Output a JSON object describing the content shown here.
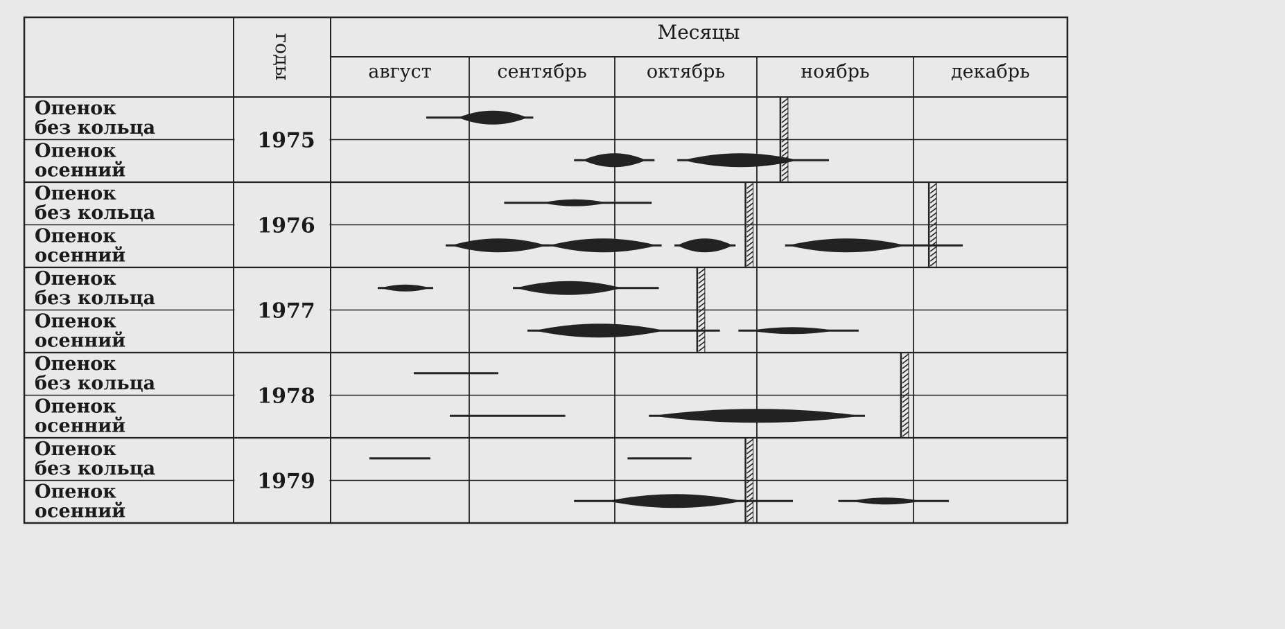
{
  "chart_data": {
    "type": "gantt",
    "header": "Месяцы",
    "years_label": "годы",
    "months": [
      "август",
      "сентябрь",
      "октябрь",
      "ноябрь",
      "декабрь"
    ],
    "x_units": "month (8 = beginning of August, 13 = end of December)",
    "xlim": [
      8,
      13
    ],
    "colors": {
      "ink": "#222222",
      "background": "#e9e9e9"
    },
    "years": [
      {
        "year": "1975",
        "frost": [
          11.15
        ],
        "rows": [
          {
            "label": [
              "Опенок",
              "без кольца"
            ],
            "segments": [
              {
                "from": 8.69,
                "to": 9.44,
                "peak_from": 8.92,
                "peak_to": 9.4
              }
            ]
          },
          {
            "label": [
              "Опенок",
              "осенний"
            ],
            "segments": [
              {
                "from": 9.72,
                "to": 10.28,
                "peak_from": 9.78,
                "peak_to": 10.22
              },
              {
                "from": 10.44,
                "to": 11.46,
                "peak_from": 10.48,
                "peak_to": 11.26
              }
            ]
          }
        ]
      },
      {
        "year": "1976",
        "frost": [
          10.92,
          12.1
        ],
        "rows": [
          {
            "label": [
              "Опенок",
              "без кольца"
            ],
            "segments": [
              {
                "from": 9.24,
                "to": 10.26,
                "peak_from": 9.5,
                "peak_to": 9.95,
                "thin": true
              }
            ]
          },
          {
            "label": [
              "Опенок",
              "осенний"
            ],
            "segments": [
              {
                "from": 8.83,
                "to": 9.55,
                "peak_from": 8.87,
                "peak_to": 9.53
              },
              {
                "from": 9.5,
                "to": 10.33,
                "peak_from": 9.55,
                "peak_to": 10.3
              },
              {
                "from": 10.42,
                "to": 10.85,
                "peak_from": 10.44,
                "peak_to": 10.83
              },
              {
                "from": 11.18,
                "to": 12.32,
                "peak_from": 11.2,
                "peak_to": 11.95
              }
            ]
          }
        ]
      },
      {
        "year": "1977",
        "frost": [
          10.58
        ],
        "rows": [
          {
            "label": [
              "Опенок",
              "без кольца"
            ],
            "segments": [
              {
                "from": 8.34,
                "to": 8.74,
                "peak_from": 8.36,
                "peak_to": 8.72,
                "thin": true
              },
              {
                "from": 9.3,
                "to": 10.31,
                "peak_from": 9.32,
                "peak_to": 10.05
              }
            ]
          },
          {
            "label": [
              "Опенок",
              "осенний"
            ],
            "segments": [
              {
                "from": 9.4,
                "to": 10.74,
                "peak_from": 9.45,
                "peak_to": 10.35
              },
              {
                "from": 10.87,
                "to": 11.65,
                "peak_from": 10.95,
                "peak_to": 11.5,
                "thin": true
              }
            ]
          }
        ]
      },
      {
        "year": "1978",
        "frost": [
          11.92
        ],
        "rows": [
          {
            "label": [
              "Опенок",
              "без кольца"
            ],
            "segments": [
              {
                "from": 8.6,
                "to": 9.2
              }
            ]
          },
          {
            "label": [
              "Опенок",
              "осенний"
            ],
            "segments": [
              {
                "from": 8.86,
                "to": 9.66
              },
              {
                "from": 10.24,
                "to": 11.69,
                "peak_from": 10.26,
                "peak_to": 11.67
              }
            ]
          }
        ]
      },
      {
        "year": "1979",
        "frost": [
          10.92
        ],
        "rows": [
          {
            "label": [
              "Опенок",
              "без кольца"
            ],
            "segments": [
              {
                "from": 8.28,
                "to": 8.72
              },
              {
                "from": 10.09,
                "to": 10.54
              }
            ]
          },
          {
            "label": [
              "Опенок",
              "осенний"
            ],
            "segments": [
              {
                "from": 9.72,
                "to": 11.23,
                "peak_from": 9.95,
                "peak_to": 10.9
              },
              {
                "from": 11.52,
                "to": 12.23,
                "peak_from": 11.6,
                "peak_to": 12.05,
                "thin": true
              }
            ]
          }
        ]
      }
    ]
  }
}
